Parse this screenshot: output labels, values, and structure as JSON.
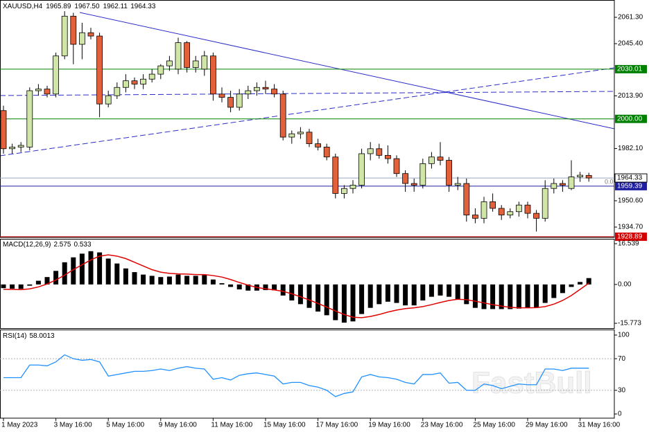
{
  "chart_data": [
    {
      "type": "candlestick",
      "symbol": "XAUUSD,H4",
      "ohlc_labels": [
        "1965.89",
        "1967.50",
        "1962.11",
        "1964.33"
      ],
      "open": [
        2005,
        1982,
        1983,
        1983,
        2017,
        2018,
        2015,
        2038,
        2062,
        2045,
        2052,
        2050,
        2009,
        2014,
        2019,
        2023,
        2021,
        2024,
        2027,
        2032,
        2030,
        2046,
        2031,
        2030,
        2038,
        2015,
        2013,
        2007,
        2015,
        2017,
        2019,
        2018,
        2015,
        1989,
        1991,
        1992,
        1985,
        1983,
        1977,
        1955,
        1958,
        1960,
        1979,
        1982,
        1978,
        1976,
        1967,
        1961,
        1960,
        1973,
        1977,
        1975,
        1960,
        1961,
        1942,
        1940,
        1950,
        1946,
        1942,
        1944,
        1948,
        1943,
        1940,
        1958,
        1961,
        1958,
        1965,
        1965.89
      ],
      "high": [
        2008,
        1985,
        1986,
        2019,
        2021,
        2020,
        2040,
        2065,
        2064,
        2058,
        2055,
        2052,
        2017,
        2022,
        2027,
        2025,
        2027,
        2030,
        2033,
        2038,
        2049,
        2047,
        2038,
        2041,
        2040,
        2019,
        2017,
        2018,
        2020,
        2022,
        2023,
        2021,
        2017,
        1993,
        1995,
        1994,
        1988,
        1985,
        1979,
        1960,
        1963,
        1982,
        1986,
        1985,
        1984,
        1978,
        1969,
        1964,
        1976,
        1980,
        1986,
        1977,
        1965,
        1964,
        1946,
        1953,
        1955,
        1948,
        1946,
        1950,
        1950,
        1945,
        1963,
        1964,
        1963,
        1975,
        1968,
        1967.5
      ],
      "low": [
        1979,
        1979,
        1980,
        1981,
        2014,
        2013,
        2013,
        2036,
        2033,
        2036,
        2048,
        2001,
        2007,
        2012,
        2016,
        2018,
        2018,
        2022,
        2024,
        2029,
        2027,
        2028,
        2028,
        2026,
        2011,
        2010,
        2004,
        2005,
        2012,
        2014,
        2015,
        2013,
        1987,
        1985,
        1988,
        1983,
        1981,
        1975,
        1952,
        1952,
        1955,
        1958,
        1975,
        1976,
        1973,
        1965,
        1956,
        1956,
        1958,
        1970,
        1972,
        1956,
        1957,
        1938,
        1937,
        1937,
        1944,
        1939,
        1940,
        1941,
        1940,
        1932,
        1938,
        1955,
        1956,
        1957,
        1962,
        1962.11
      ],
      "close": [
        1982,
        1983,
        1984,
        2017,
        2018,
        2015,
        2038,
        2062,
        2045,
        2052,
        2050,
        2009,
        2014,
        2019,
        2023,
        2021,
        2024,
        2027,
        2032,
        2035,
        2046,
        2031,
        2035,
        2038,
        2015,
        2013,
        2007,
        2015,
        2017,
        2019,
        2018,
        2015,
        1989,
        1991,
        1992,
        1985,
        1983,
        1977,
        1955,
        1958,
        1960,
        1979,
        1982,
        1978,
        1976,
        1967,
        1961,
        1960,
        1973,
        1977,
        1975,
        1960,
        1961,
        1942,
        1940,
        1950,
        1946,
        1942,
        1944,
        1948,
        1943,
        1940,
        1958,
        1961,
        1960,
        1965,
        1966,
        1964.33
      ],
      "bull_color": "#cfe6a6",
      "bear_color": "#e2603a",
      "ylim": [
        1928.85,
        2071.75
      ],
      "yticks": [
        {
          "value": 2061.3,
          "label": "2061.30"
        },
        {
          "value": 2045.4,
          "label": "2045.40"
        },
        {
          "value": 2013.9,
          "label": "2013.90"
        },
        {
          "value": 1982.1,
          "label": "1982.10"
        },
        {
          "value": 1950.6,
          "label": "1950.60"
        },
        {
          "value": 1934.7,
          "label": "1934.70"
        }
      ],
      "levels": [
        {
          "value": 2030.01,
          "color": "#008000"
        },
        {
          "value": 2000,
          "label": "2000.00",
          "color": "#008000"
        },
        {
          "value": 1959.39,
          "color": "#1f1fa0"
        },
        {
          "value": 1928.89,
          "color": "#d40000"
        }
      ],
      "level_annotation": "0.0",
      "xticks": [
        {
          "value": 0,
          "label": "1 May 2023"
        },
        {
          "value": 6,
          "label": "3 May 16:00"
        },
        {
          "value": 12,
          "label": "5 May 16:00"
        },
        {
          "value": 18,
          "label": "9 May 16:00"
        },
        {
          "value": 24,
          "label": "11 May 16:00"
        },
        {
          "value": 30,
          "label": "15 May 16:00"
        },
        {
          "value": 36,
          "label": "17 May 16:00"
        },
        {
          "value": 42,
          "label": "19 May 16:00"
        },
        {
          "value": 48,
          "label": "23 May 16:00"
        },
        {
          "value": 54,
          "label": "25 May 16:00"
        },
        {
          "value": 60,
          "label": "29 May 16:00"
        },
        {
          "value": 66,
          "label": "31 May 16:00"
        }
      ]
    },
    {
      "type": "macd",
      "label": "MACD(12,26,9)",
      "histogram": [
        -1.5,
        -1.7,
        -1.8,
        -0.5,
        1.5,
        3.0,
        5.5,
        9.0,
        11.0,
        12.5,
        13.5,
        13.0,
        10.5,
        8.5,
        6.5,
        5.0,
        4.0,
        3.5,
        3.0,
        3.2,
        4.0,
        3.5,
        3.5,
        3.8,
        2.0,
        0.5,
        -1.0,
        -2.0,
        -2.5,
        -2.5,
        -2.3,
        -2.4,
        -4.5,
        -6.5,
        -8.0,
        -9.5,
        -11.0,
        -12.5,
        -14.5,
        -15.5,
        -15.0,
        -12.0,
        -9.5,
        -8.0,
        -7.0,
        -7.5,
        -8.5,
        -8.5,
        -6.5,
        -5.0,
        -4.5,
        -5.0,
        -6.0,
        -8.0,
        -9.5,
        -10.0,
        -10.0,
        -10.0,
        -10.0,
        -9.8,
        -9.5,
        -9.5,
        -7.5,
        -5.5,
        -3.5,
        -1.0,
        1.0,
        2.575
      ],
      "signal": [
        -2.0,
        -2.0,
        -2.1,
        -1.8,
        -1.0,
        0.2,
        1.8,
        3.8,
        6.0,
        8.0,
        10.0,
        11.5,
        12.0,
        11.5,
        10.5,
        9.0,
        7.5,
        6.0,
        5.0,
        4.5,
        4.3,
        4.2,
        4.0,
        4.0,
        3.6,
        3.0,
        2.0,
        0.8,
        -0.3,
        -1.2,
        -1.8,
        -2.2,
        -2.8,
        -3.8,
        -5.0,
        -6.3,
        -7.7,
        -9.2,
        -10.8,
        -12.2,
        -13.3,
        -13.5,
        -13.0,
        -12.2,
        -11.2,
        -10.4,
        -9.8,
        -9.5,
        -9.0,
        -8.2,
        -7.3,
        -6.5,
        -6.0,
        -6.2,
        -6.8,
        -7.5,
        -8.2,
        -8.8,
        -9.3,
        -9.5,
        -9.5,
        -9.4,
        -9.0,
        -8.0,
        -6.5,
        -4.5,
        -2.0,
        0.533
      ],
      "histogram_color": "#000000",
      "signal_color": "#e00000",
      "ylim": [
        -17.74,
        18.23
      ],
      "yticks": [
        16.539,
        {
          "value": 0,
          "label": "0.00"
        },
        -15.773
      ]
    },
    {
      "type": "rsi",
      "label": "RSI(14)",
      "values": [
        46,
        46,
        46,
        62,
        62,
        61,
        66,
        75,
        70,
        68,
        69,
        66,
        48,
        50,
        52,
        54,
        54,
        55,
        57,
        55,
        58,
        60,
        58,
        57,
        44,
        46,
        43,
        49,
        51,
        52,
        50,
        48,
        38,
        40,
        40,
        36,
        34,
        30,
        22,
        26,
        28,
        47,
        50,
        47,
        46,
        44,
        40,
        38,
        50,
        50,
        52,
        39,
        40,
        30,
        30,
        38,
        36,
        32,
        35,
        38,
        37,
        37,
        57,
        57,
        55,
        58,
        58,
        58.0013
      ],
      "color": "#1e90ff",
      "ylim": [
        -5.3,
        106.1
      ],
      "yticks": [
        100,
        70,
        30,
        0
      ],
      "grid": true
    }
  ],
  "watermark": "FastBull"
}
